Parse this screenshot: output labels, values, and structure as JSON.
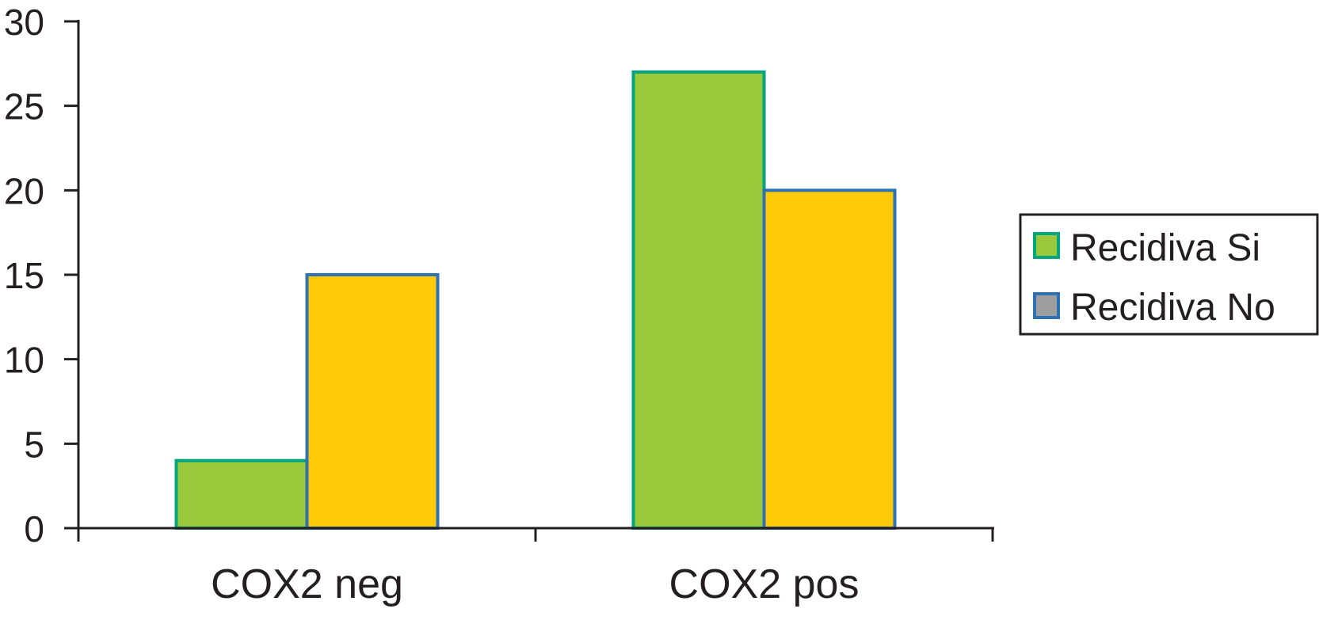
{
  "chart_data": {
    "type": "bar",
    "title": "",
    "xlabel": "",
    "ylabel": "",
    "categories": [
      "COX2 neg",
      "COX2 pos"
    ],
    "series": [
      {
        "name": "Recidiva Si",
        "values": [
          4,
          27
        ],
        "fill": "#9aca3c",
        "stroke": "#00a67e",
        "legend_swatch_fill": "#9aca3c"
      },
      {
        "name": "Recidiva No",
        "values": [
          15,
          20
        ],
        "fill": "#ffcb08",
        "stroke": "#2e72b6",
        "legend_swatch_fill": "#9e9e9e"
      }
    ],
    "ylim": [
      0,
      30
    ],
    "yticks": [
      0,
      5,
      10,
      15,
      20,
      25,
      30
    ],
    "grid": false,
    "legend_position": "right"
  },
  "colors": {
    "axis": "#231f20",
    "text": "#231f20",
    "background": "#ffffff"
  }
}
